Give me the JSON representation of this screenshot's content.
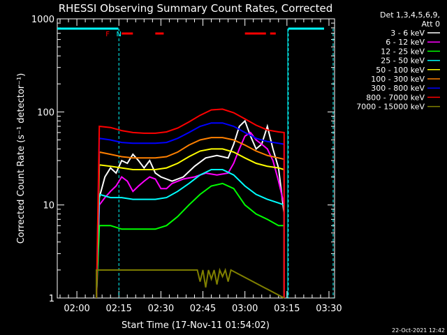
{
  "chart_data": {
    "type": "line",
    "title": "RHESSI Observing Summary Count Rates, Corrected",
    "xlabel": "Start Time (17-Nov-11 01:54:02)",
    "ylabel": "Corrected Count Rate (s⁻¹ detector⁻¹)",
    "ylim": [
      1,
      1000
    ],
    "yscale": "log",
    "ytick_labels": [
      "1",
      "10",
      "100",
      "1000"
    ],
    "xtick_labels": [
      "02:00",
      "02:15",
      "02:30",
      "02:45",
      "03:00",
      "03:15",
      "03:30"
    ],
    "xlim_minutes_after_0154": [
      -1,
      98
    ],
    "legend_header": [
      "Det 1,3,4,5,6,9,",
      "Att 0"
    ],
    "legend_position": "right",
    "series": [
      {
        "name": "3 - 6 keV",
        "color": "#ffffff",
        "x": [
          14,
          16,
          18,
          20,
          22,
          24,
          26,
          28,
          30,
          32,
          34,
          36,
          38,
          40,
          44,
          48,
          52,
          56,
          60,
          62,
          64,
          66,
          68,
          70,
          72,
          74,
          76,
          78,
          80
        ],
        "y": [
          12,
          20,
          25,
          22,
          30,
          28,
          35,
          30,
          25,
          30,
          22,
          20,
          19,
          18,
          20,
          26,
          32,
          34,
          32,
          45,
          70,
          80,
          55,
          40,
          45,
          70,
          40,
          25,
          8
        ]
      },
      {
        "name": "6 - 12 keV",
        "color": "#ff00ff",
        "x": [
          14,
          16,
          18,
          20,
          22,
          24,
          26,
          28,
          30,
          32,
          34,
          36,
          38,
          40,
          44,
          48,
          52,
          56,
          60,
          62,
          64,
          66,
          68,
          70,
          72,
          74,
          76,
          78,
          80
        ],
        "y": [
          10,
          12,
          14,
          16,
          20,
          18,
          14,
          16,
          18,
          20,
          19,
          15,
          15,
          17,
          19,
          20,
          22,
          21,
          22,
          28,
          40,
          55,
          60,
          50,
          45,
          40,
          30,
          18,
          10
        ]
      },
      {
        "name": "12 - 25 keV",
        "color": "#00ff00",
        "x": [
          14,
          18,
          22,
          26,
          30,
          34,
          38,
          42,
          46,
          50,
          54,
          58,
          62,
          66,
          70,
          74,
          78,
          80
        ],
        "y": [
          6,
          6,
          5.5,
          5.5,
          5.5,
          5.5,
          6,
          7.5,
          10,
          13,
          16,
          17,
          15,
          10,
          8,
          7,
          6,
          6
        ]
      },
      {
        "name": "25 - 50 keV",
        "color": "#00ffff",
        "x": [
          14,
          18,
          22,
          26,
          30,
          34,
          38,
          42,
          46,
          50,
          54,
          58,
          62,
          66,
          70,
          74,
          78,
          80
        ],
        "y": [
          13,
          12,
          12,
          11.5,
          11.5,
          11.5,
          12,
          14,
          17,
          21,
          24,
          24,
          21,
          16,
          13,
          11.5,
          10.5,
          10
        ]
      },
      {
        "name": "50 - 100 keV",
        "color": "#ffff00",
        "x": [
          14,
          18,
          22,
          26,
          30,
          34,
          38,
          42,
          46,
          50,
          54,
          58,
          62,
          66,
          70,
          74,
          78,
          80
        ],
        "y": [
          27,
          26,
          25,
          24,
          24,
          24,
          25,
          28,
          33,
          38,
          40,
          40,
          37,
          32,
          28,
          26,
          25,
          24
        ]
      },
      {
        "name": "100 - 300 keV",
        "color": "#ff8000",
        "x": [
          14,
          18,
          22,
          26,
          30,
          34,
          38,
          42,
          46,
          50,
          54,
          58,
          62,
          66,
          70,
          74,
          78,
          80
        ],
        "y": [
          37,
          35,
          33,
          32,
          32,
          32,
          33,
          37,
          44,
          50,
          53,
          53,
          50,
          44,
          38,
          34,
          32,
          31
        ]
      },
      {
        "name": "300 - 800 keV",
        "color": "#0000ff",
        "x": [
          14,
          18,
          22,
          26,
          30,
          34,
          38,
          42,
          46,
          50,
          54,
          58,
          62,
          66,
          70,
          74,
          78,
          80
        ],
        "y": [
          52,
          50,
          47,
          46,
          46,
          46,
          47,
          52,
          60,
          70,
          76,
          76,
          70,
          60,
          52,
          48,
          46,
          45
        ]
      },
      {
        "name": "800 - 7000 keV",
        "color": "#ff0000",
        "x": [
          14,
          18,
          22,
          26,
          30,
          34,
          38,
          42,
          46,
          50,
          54,
          58,
          62,
          66,
          70,
          74,
          78,
          80
        ],
        "y": [
          70,
          68,
          63,
          60,
          59,
          59,
          61,
          67,
          78,
          92,
          105,
          107,
          98,
          84,
          72,
          64,
          61,
          60
        ]
      },
      {
        "name": "7000 - 15000 keV",
        "color": "#808000",
        "x": [
          49,
          50,
          51,
          52,
          53,
          54,
          55,
          56,
          57,
          58,
          59,
          60,
          61
        ],
        "y": [
          2,
          1.5,
          2,
          1.3,
          2,
          1.6,
          2,
          1.4,
          2,
          1.7,
          2,
          1.5,
          2
        ]
      }
    ],
    "annotations": [
      {
        "label": "F",
        "color": "#ff0000",
        "x": 17
      },
      {
        "label": "N",
        "color": "#00ffff",
        "x": 21
      }
    ]
  },
  "footer": {
    "date_stamp": "22-Oct-2021 12:42"
  }
}
